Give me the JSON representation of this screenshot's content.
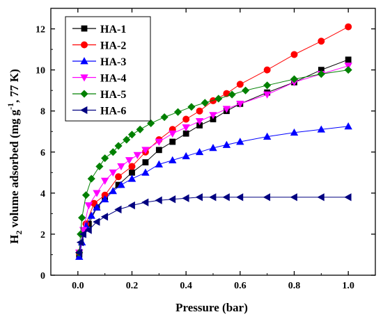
{
  "chart_data": {
    "type": "scatter",
    "xlabel": "Pressure (bar)",
    "ylabel_parts": [
      "H",
      "2",
      " volume adsorbed (mg g",
      "-1",
      ", 77 K)"
    ],
    "xlim": [
      -0.1,
      1.1
    ],
    "ylim": [
      0,
      13
    ],
    "x_ticks": [
      "0.0",
      "0.2",
      "0.4",
      "0.6",
      "0.8",
      "1.0"
    ],
    "y_ticks": [
      "0",
      "2",
      "4",
      "6",
      "8",
      "10",
      "12"
    ],
    "legend_position": "top-left",
    "series": [
      {
        "name": "HA-1",
        "color": "#000000",
        "marker": "square",
        "points": [
          [
            0.005,
            1.0
          ],
          [
            0.02,
            2.0
          ],
          [
            0.04,
            2.5
          ],
          [
            0.07,
            3.3
          ],
          [
            0.1,
            3.8
          ],
          [
            0.15,
            4.4
          ],
          [
            0.2,
            5.0
          ],
          [
            0.25,
            5.5
          ],
          [
            0.3,
            6.1
          ],
          [
            0.35,
            6.5
          ],
          [
            0.4,
            6.9
          ],
          [
            0.45,
            7.3
          ],
          [
            0.5,
            7.6
          ],
          [
            0.55,
            8.0
          ],
          [
            0.6,
            8.35
          ],
          [
            0.7,
            8.9
          ],
          [
            0.8,
            9.4
          ],
          [
            0.9,
            10.0
          ],
          [
            1.0,
            10.5
          ]
        ]
      },
      {
        "name": "HA-2",
        "color": "#ff0000",
        "marker": "circle",
        "points": [
          [
            0.005,
            1.1
          ],
          [
            0.03,
            2.5
          ],
          [
            0.06,
            3.5
          ],
          [
            0.1,
            3.9
          ],
          [
            0.15,
            4.8
          ],
          [
            0.2,
            5.3
          ],
          [
            0.25,
            6.0
          ],
          [
            0.3,
            6.6
          ],
          [
            0.35,
            7.1
          ],
          [
            0.4,
            7.6
          ],
          [
            0.45,
            8.0
          ],
          [
            0.5,
            8.5
          ],
          [
            0.55,
            8.85
          ],
          [
            0.6,
            9.3
          ],
          [
            0.7,
            10.0
          ],
          [
            0.8,
            10.75
          ],
          [
            0.9,
            11.4
          ],
          [
            1.0,
            12.1
          ]
        ]
      },
      {
        "name": "HA-3",
        "color": "#0000ff",
        "marker": "triangle-up",
        "points": [
          [
            0.005,
            0.9
          ],
          [
            0.015,
            1.6
          ],
          [
            0.03,
            2.4
          ],
          [
            0.05,
            2.9
          ],
          [
            0.07,
            3.3
          ],
          [
            0.1,
            3.7
          ],
          [
            0.13,
            4.1
          ],
          [
            0.16,
            4.4
          ],
          [
            0.2,
            4.7
          ],
          [
            0.25,
            5.0
          ],
          [
            0.3,
            5.4
          ],
          [
            0.35,
            5.6
          ],
          [
            0.4,
            5.8
          ],
          [
            0.45,
            6.0
          ],
          [
            0.5,
            6.2
          ],
          [
            0.55,
            6.35
          ],
          [
            0.6,
            6.5
          ],
          [
            0.7,
            6.75
          ],
          [
            0.8,
            6.95
          ],
          [
            0.9,
            7.1
          ],
          [
            1.0,
            7.25
          ]
        ]
      },
      {
        "name": "HA-4",
        "color": "#ff00ff",
        "marker": "triangle-down",
        "points": [
          [
            0.005,
            1.1
          ],
          [
            0.02,
            2.2
          ],
          [
            0.04,
            3.4
          ],
          [
            0.07,
            4.0
          ],
          [
            0.1,
            4.6
          ],
          [
            0.13,
            5.0
          ],
          [
            0.16,
            5.3
          ],
          [
            0.19,
            5.6
          ],
          [
            0.22,
            5.85
          ],
          [
            0.25,
            6.1
          ],
          [
            0.3,
            6.5
          ],
          [
            0.35,
            6.9
          ],
          [
            0.4,
            7.2
          ],
          [
            0.45,
            7.5
          ],
          [
            0.5,
            7.8
          ],
          [
            0.55,
            8.1
          ],
          [
            0.6,
            8.35
          ],
          [
            0.7,
            8.8
          ],
          [
            0.8,
            9.4
          ],
          [
            0.9,
            9.8
          ],
          [
            1.0,
            10.2
          ]
        ]
      },
      {
        "name": "HA-5",
        "color": "#008000",
        "marker": "diamond",
        "points": [
          [
            0.005,
            1.1
          ],
          [
            0.01,
            2.0
          ],
          [
            0.015,
            2.8
          ],
          [
            0.03,
            3.9
          ],
          [
            0.05,
            4.7
          ],
          [
            0.08,
            5.3
          ],
          [
            0.1,
            5.7
          ],
          [
            0.13,
            6.0
          ],
          [
            0.15,
            6.3
          ],
          [
            0.18,
            6.6
          ],
          [
            0.2,
            6.85
          ],
          [
            0.23,
            7.1
          ],
          [
            0.27,
            7.4
          ],
          [
            0.32,
            7.7
          ],
          [
            0.37,
            7.95
          ],
          [
            0.42,
            8.2
          ],
          [
            0.47,
            8.4
          ],
          [
            0.52,
            8.6
          ],
          [
            0.57,
            8.8
          ],
          [
            0.62,
            9.0
          ],
          [
            0.7,
            9.25
          ],
          [
            0.8,
            9.55
          ],
          [
            0.9,
            9.8
          ],
          [
            1.0,
            10.0
          ]
        ]
      },
      {
        "name": "HA-6",
        "color": "#000080",
        "marker": "triangle-left",
        "points": [
          [
            0.005,
            1.1
          ],
          [
            0.01,
            1.6
          ],
          [
            0.02,
            2.0
          ],
          [
            0.04,
            2.2
          ],
          [
            0.07,
            2.6
          ],
          [
            0.1,
            2.85
          ],
          [
            0.15,
            3.2
          ],
          [
            0.2,
            3.4
          ],
          [
            0.25,
            3.55
          ],
          [
            0.3,
            3.65
          ],
          [
            0.35,
            3.7
          ],
          [
            0.4,
            3.75
          ],
          [
            0.45,
            3.8
          ],
          [
            0.5,
            3.8
          ],
          [
            0.55,
            3.8
          ],
          [
            0.6,
            3.8
          ],
          [
            0.7,
            3.8
          ],
          [
            0.8,
            3.8
          ],
          [
            0.9,
            3.8
          ],
          [
            1.0,
            3.8
          ]
        ]
      }
    ]
  }
}
